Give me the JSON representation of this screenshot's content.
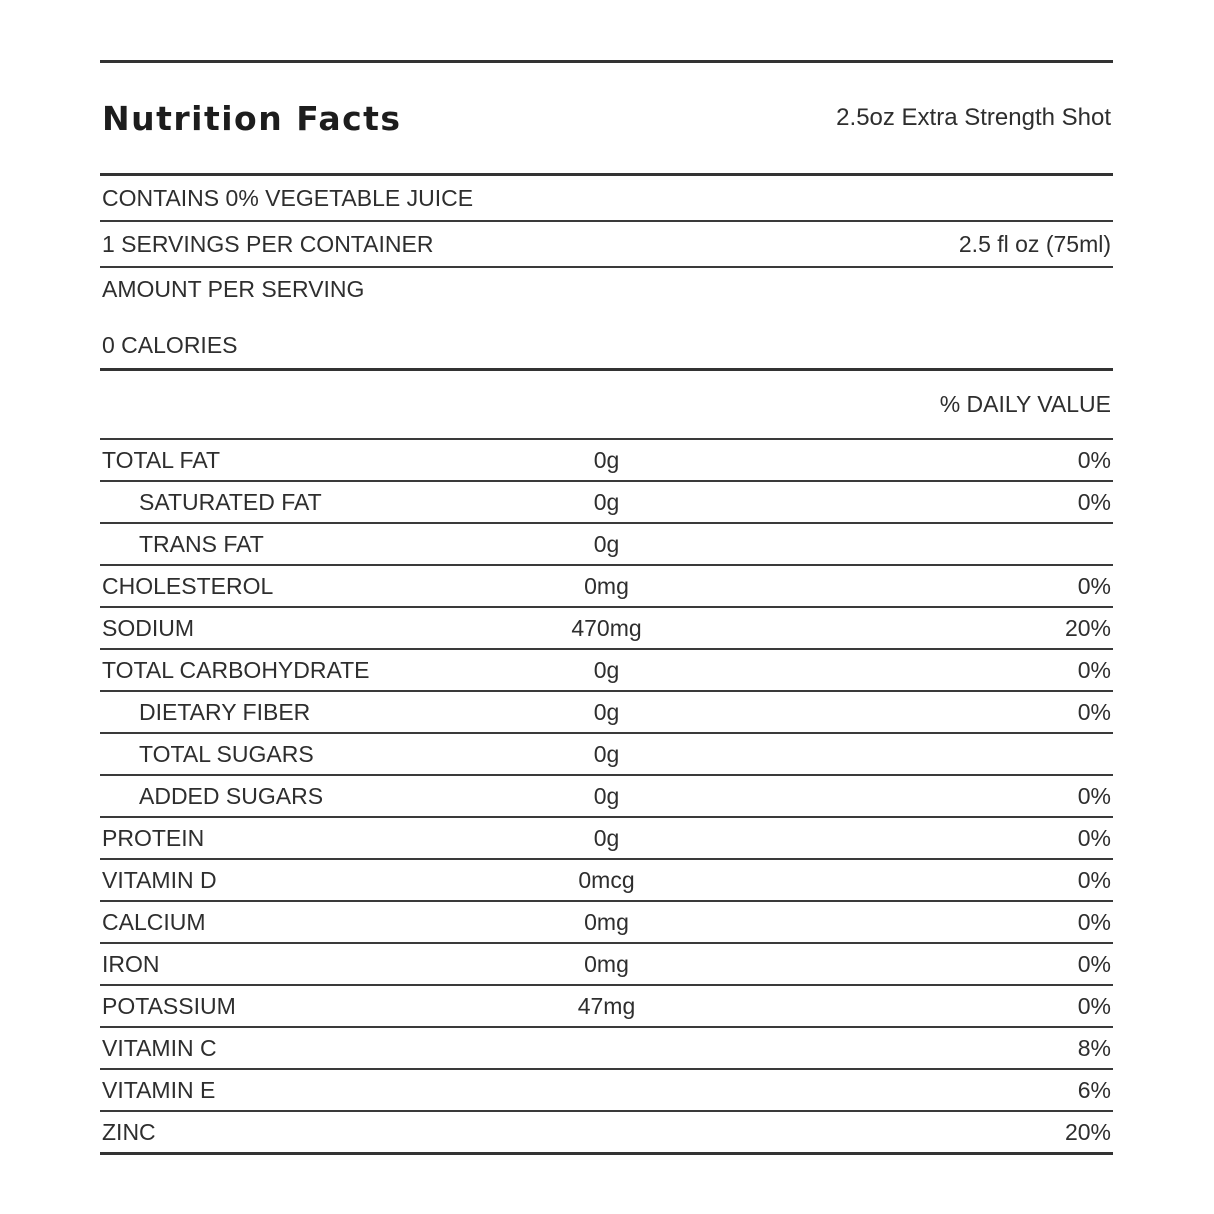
{
  "label": {
    "title": "Nutrition Facts",
    "product": "2.5oz Extra Strength Shot",
    "contains": "CONTAINS 0% VEGETABLE JUICE",
    "servings_per_container": "1 SERVINGS PER CONTAINER",
    "serving_size": "2.5 fl oz (75ml)",
    "amount_per_serving_label": "AMOUNT PER SERVING",
    "calories_line": "0 CALORIES",
    "daily_value_header": "% DAILY VALUE",
    "colors": {
      "text": "#2e2e2e",
      "rule": "#3a3a3a",
      "background": "#ffffff"
    },
    "rows": [
      {
        "name": "TOTAL FAT",
        "amount": "0g",
        "dv": "0%",
        "indent": false
      },
      {
        "name": "SATURATED FAT",
        "amount": "0g",
        "dv": "0%",
        "indent": true
      },
      {
        "name": "TRANS FAT",
        "amount": "0g",
        "dv": "",
        "indent": true
      },
      {
        "name": "CHOLESTEROL",
        "amount": "0mg",
        "dv": "0%",
        "indent": false
      },
      {
        "name": "SODIUM",
        "amount": "470mg",
        "dv": "20%",
        "indent": false
      },
      {
        "name": "TOTAL CARBOHYDRATE",
        "amount": "0g",
        "dv": "0%",
        "indent": false
      },
      {
        "name": "DIETARY FIBER",
        "amount": "0g",
        "dv": "0%",
        "indent": true
      },
      {
        "name": "TOTAL SUGARS",
        "amount": "0g",
        "dv": "",
        "indent": true
      },
      {
        "name": "ADDED SUGARS",
        "amount": "0g",
        "dv": "0%",
        "indent": true
      },
      {
        "name": "PROTEIN",
        "amount": "0g",
        "dv": "0%",
        "indent": false
      },
      {
        "name": "VITAMIN D",
        "amount": "0mcg",
        "dv": "0%",
        "indent": false
      },
      {
        "name": "CALCIUM",
        "amount": "0mg",
        "dv": "0%",
        "indent": false
      },
      {
        "name": "IRON",
        "amount": "0mg",
        "dv": "0%",
        "indent": false
      },
      {
        "name": "POTASSIUM",
        "amount": "47mg",
        "dv": "0%",
        "indent": false
      },
      {
        "name": "VITAMIN C",
        "amount": "",
        "dv": "8%",
        "indent": false
      },
      {
        "name": "VITAMIN E",
        "amount": "",
        "dv": "6%",
        "indent": false
      },
      {
        "name": "ZINC",
        "amount": "",
        "dv": "20%",
        "indent": false
      }
    ]
  }
}
